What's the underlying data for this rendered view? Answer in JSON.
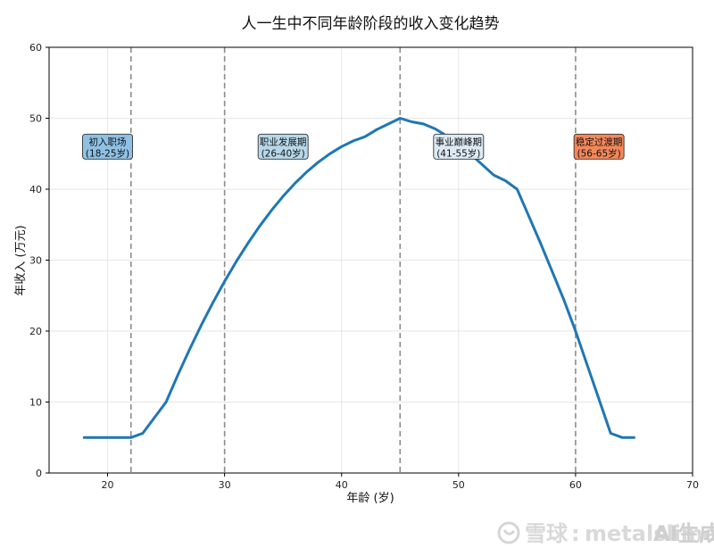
{
  "chart_data": {
    "type": "line",
    "title": "人一生中不同年龄阶段的收入变化趋势",
    "xlabel": "年龄 (岁)",
    "ylabel": "年收入 (万元)",
    "xlim": [
      15,
      70
    ],
    "ylim": [
      0,
      60
    ],
    "xticks": [
      20,
      30,
      40,
      50,
      60,
      70
    ],
    "yticks": [
      0,
      10,
      20,
      30,
      40,
      50,
      60
    ],
    "grid": true,
    "series": [
      {
        "color": "#1f77b4",
        "x": [
          18,
          19,
          20,
          21,
          22,
          23,
          24,
          25,
          26,
          27,
          28,
          29,
          30,
          31,
          32,
          33,
          34,
          35,
          36,
          37,
          38,
          39,
          40,
          41,
          42,
          43,
          44,
          45,
          46,
          47,
          48,
          49,
          50,
          51,
          52,
          53,
          54,
          55,
          56,
          57,
          58,
          59,
          60,
          61,
          62,
          63,
          64,
          65
        ],
        "y": [
          5,
          5,
          5,
          5,
          5,
          5.6,
          7.8,
          10,
          13.8,
          17.4,
          20.8,
          24,
          27,
          29.8,
          32.4,
          34.8,
          37,
          39,
          40.8,
          42.4,
          43.8,
          45,
          46,
          46.8,
          47.4,
          48.4,
          49.2,
          50,
          49.5,
          49.2,
          48.5,
          47.5,
          46.2,
          45,
          43.5,
          42,
          41.2,
          40,
          36.2,
          32.4,
          28.4,
          24.4,
          20,
          15.2,
          10.4,
          5.6,
          5,
          5
        ]
      }
    ],
    "vlines": [
      22,
      30,
      45,
      60
    ],
    "annotations": [
      {
        "line1": "初入职场",
        "line2": "(18-25岁)",
        "x": 20,
        "y": 46,
        "color": "#8ec1e3"
      },
      {
        "line1": "职业发展期",
        "line2": "(26-40岁)",
        "x": 35,
        "y": 46,
        "color": "#b8d8ea"
      },
      {
        "line1": "事业巅峰期",
        "line2": "(41-55岁)",
        "x": 50,
        "y": 46,
        "color": "#dceaf4"
      },
      {
        "line1": "稳定过渡期",
        "line2": "(56-65岁)",
        "x": 62,
        "y": 46,
        "color": "#f4875a"
      }
    ]
  },
  "watermark": {
    "brand": "雪球",
    "separator": ":",
    "user": "metalslime",
    "overlay": "AI生成"
  }
}
